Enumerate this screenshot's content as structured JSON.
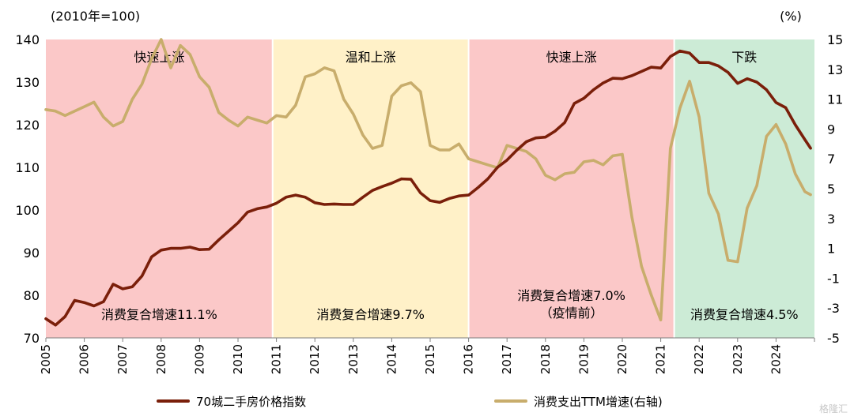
{
  "chart_data": {
    "type": "line",
    "left_unit_label": "(2010年=100)",
    "right_unit_label": "(%)",
    "x_ticks": [
      "2005",
      "2006",
      "2007",
      "2008",
      "2009",
      "2010",
      "2011",
      "2012",
      "2013",
      "2014",
      "2015",
      "2016",
      "2017",
      "2018",
      "2019",
      "2020",
      "2021",
      "2022",
      "2023",
      "2024"
    ],
    "left_axis": {
      "range": [
        70,
        140
      ],
      "ticks": [
        70,
        80,
        90,
        100,
        110,
        120,
        130,
        140
      ]
    },
    "right_axis": {
      "range": [
        -5,
        15
      ],
      "ticks": [
        -5,
        -3,
        -1,
        1,
        3,
        5,
        7,
        9,
        11,
        13,
        15
      ]
    },
    "series": [
      {
        "name": "70城二手房价格指数",
        "axis": "left",
        "color": "#7a1f0a",
        "x": [
          2005.0,
          2005.25,
          2005.5,
          2005.75,
          2006.0,
          2006.25,
          2006.5,
          2006.75,
          2007.0,
          2007.25,
          2007.5,
          2007.75,
          2008.0,
          2008.25,
          2008.5,
          2008.75,
          2009.0,
          2009.25,
          2009.5,
          2009.75,
          2010.0,
          2010.25,
          2010.5,
          2010.75,
          2011.0,
          2011.25,
          2011.5,
          2011.75,
          2012.0,
          2012.25,
          2012.5,
          2012.75,
          2013.0,
          2013.25,
          2013.5,
          2013.75,
          2014.0,
          2014.25,
          2014.5,
          2014.75,
          2015.0,
          2015.25,
          2015.5,
          2015.75,
          2016.0,
          2016.25,
          2016.5,
          2016.75,
          2017.0,
          2017.25,
          2017.5,
          2017.75,
          2018.0,
          2018.25,
          2018.5,
          2018.75,
          2019.0,
          2019.25,
          2019.5,
          2019.75,
          2020.0,
          2020.25,
          2020.5,
          2020.75,
          2021.0,
          2021.25,
          2021.5,
          2021.75,
          2022.0,
          2022.25,
          2022.5,
          2022.75,
          2023.0,
          2023.25,
          2023.5,
          2023.75,
          2024.0,
          2024.25,
          2024.5,
          2024.75,
          2024.9
        ],
        "y": [
          74.5,
          73.0,
          75.0,
          78.8,
          78.3,
          77.5,
          78.5,
          82.6,
          81.5,
          82.0,
          84.5,
          89.0,
          90.6,
          91.0,
          91.0,
          91.3,
          90.7,
          90.8,
          93.0,
          95.0,
          97.0,
          99.5,
          100.3,
          100.7,
          101.6,
          103.0,
          103.5,
          103.0,
          101.7,
          101.3,
          101.4,
          101.3,
          101.3,
          103.0,
          104.6,
          105.5,
          106.3,
          107.3,
          107.2,
          104.0,
          102.2,
          101.8,
          102.7,
          103.3,
          103.5,
          105.3,
          107.3,
          110.0,
          111.7,
          114.0,
          116.0,
          116.9,
          117.1,
          118.5,
          120.5,
          125.0,
          126.2,
          128.2,
          129.8,
          130.9,
          130.8,
          131.5,
          132.5,
          133.5,
          133.3,
          136.0,
          137.3,
          136.8,
          134.6,
          134.6,
          133.8,
          132.3,
          129.7,
          130.8,
          130.0,
          128.2,
          125.2,
          124.0,
          120.0,
          116.5,
          114.5
        ]
      },
      {
        "name": "消费支出TTM增速(右轴)",
        "axis": "right",
        "color": "#c8ad6c",
        "x": [
          2005.0,
          2005.25,
          2005.5,
          2005.75,
          2006.0,
          2006.25,
          2006.5,
          2006.75,
          2007.0,
          2007.25,
          2007.5,
          2007.75,
          2008.0,
          2008.25,
          2008.5,
          2008.75,
          2009.0,
          2009.25,
          2009.5,
          2009.75,
          2010.0,
          2010.25,
          2010.5,
          2010.75,
          2011.0,
          2011.25,
          2011.5,
          2011.75,
          2012.0,
          2012.25,
          2012.5,
          2012.75,
          2013.0,
          2013.25,
          2013.5,
          2013.75,
          2014.0,
          2014.25,
          2014.5,
          2014.75,
          2015.0,
          2015.25,
          2015.5,
          2015.75,
          2016.0,
          2016.25,
          2016.5,
          2016.75,
          2017.0,
          2017.25,
          2017.5,
          2017.75,
          2018.0,
          2018.25,
          2018.5,
          2018.75,
          2019.0,
          2019.25,
          2019.5,
          2019.75,
          2020.0,
          2020.25,
          2020.5,
          2020.75,
          2021.0,
          2021.25,
          2021.5,
          2021.75,
          2022.0,
          2022.25,
          2022.5,
          2022.75,
          2023.0,
          2023.25,
          2023.5,
          2023.75,
          2024.0,
          2024.25,
          2024.5,
          2024.75,
          2024.9
        ],
        "y": [
          10.3,
          10.2,
          9.9,
          10.2,
          10.5,
          10.8,
          9.8,
          9.2,
          9.5,
          11.0,
          12.0,
          13.7,
          15.0,
          13.1,
          14.6,
          14.0,
          12.5,
          11.8,
          10.1,
          9.6,
          9.2,
          9.8,
          9.6,
          9.4,
          9.9,
          9.8,
          10.6,
          12.5,
          12.7,
          13.1,
          12.9,
          11.0,
          10.0,
          8.6,
          7.7,
          7.9,
          11.2,
          11.9,
          12.1,
          11.5,
          7.9,
          7.6,
          7.6,
          8.0,
          7.0,
          6.8,
          6.6,
          6.4,
          7.9,
          7.7,
          7.5,
          7.0,
          5.9,
          5.6,
          6.0,
          6.1,
          6.8,
          6.9,
          6.6,
          7.2,
          7.3,
          3.1,
          -0.2,
          -2.1,
          -3.8,
          7.7,
          10.4,
          12.2,
          9.8,
          4.7,
          3.3,
          0.2,
          0.1,
          3.7,
          5.2,
          8.5,
          9.3,
          8.0,
          6.0,
          4.8,
          4.6
        ]
      }
    ],
    "phases": [
      {
        "label": "快速上涨",
        "start": 2005.0,
        "end": 2010.9,
        "fill": "#fbc8c8",
        "label_color": "#c00000",
        "rate_text": "消费复合增速11.1%",
        "rate_text2": ""
      },
      {
        "label": "温和上涨",
        "start": 2010.9,
        "end": 2016.0,
        "fill": "#fff1c8",
        "label_color": "#c8a030",
        "rate_text": "消费复合增速9.7%",
        "rate_text2": ""
      },
      {
        "label": "快速上涨",
        "start": 2016.0,
        "end": 2021.35,
        "fill": "#fbc8c8",
        "label_color": "#c00000",
        "rate_text": "消费复合增速7.0%",
        "rate_text2": "（疫情前）"
      },
      {
        "label": "下跌",
        "start": 2021.35,
        "end": 2025.0,
        "fill": "#ccebd6",
        "label_color": "#3a7040",
        "rate_text": "消费复合增速4.5%",
        "rate_text2": ""
      }
    ],
    "legend_placement": "bottom",
    "grid": false
  },
  "legend": [
    {
      "label": "70城二手房价格指数",
      "color": "#7a1f0a"
    },
    {
      "label": "消费支出TTM增速(右轴)",
      "color": "#c8ad6c"
    }
  ],
  "watermark": "格隆汇"
}
